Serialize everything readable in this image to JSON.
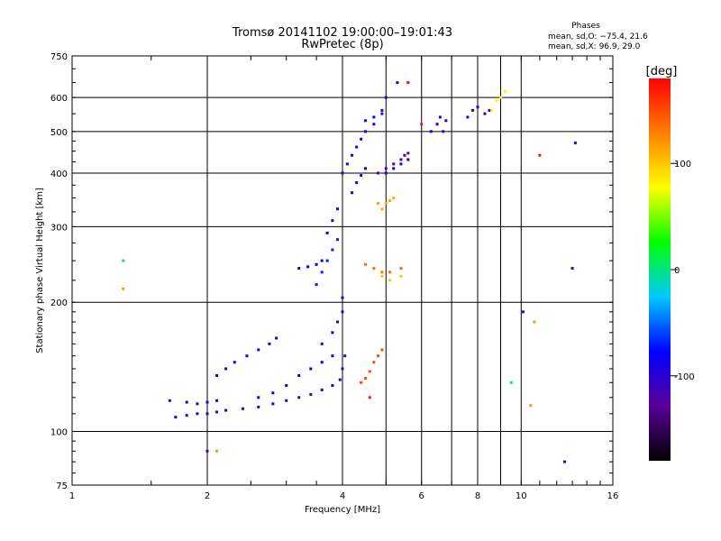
{
  "chart_data": {
    "type": "scatter",
    "title": "Tromsø 20141102 19:00:00–19:01:43",
    "subtitle": "RwPretec (8p)",
    "xlabel": "Frequency [MHz]",
    "ylabel": "Stationary phase Virtual Height [km]",
    "x_scale": "log",
    "y_scale": "log",
    "xlim": [
      1,
      16
    ],
    "ylim": [
      75,
      750
    ],
    "grid": true,
    "x_ticks": [
      1,
      2,
      4,
      6,
      8,
      10,
      16
    ],
    "x_tick_labels": [
      "1",
      "2",
      "4",
      "6",
      "8",
      "10",
      "16"
    ],
    "y_ticks": [
      75,
      100,
      200,
      300,
      400,
      500,
      600,
      750
    ],
    "y_tick_labels": [
      "75",
      "100",
      "200",
      "300",
      "400",
      "500",
      "600",
      "750"
    ],
    "legend": {
      "title": "Phases",
      "lines": [
        "mean, sd,O: −75.4, 21.6",
        "mean, sd,X:  96.9, 29.0"
      ],
      "placement": "top-right"
    },
    "colorbar": {
      "label": "[deg]",
      "range": [
        -180,
        180
      ],
      "ticks": [
        100,
        0,
        -100
      ],
      "tick_labels": [
        "100",
        "0",
        "-100"
      ],
      "stops": [
        "#000000",
        "#5a0096",
        "#0000ff",
        "#00c8ff",
        "#00ff00",
        "#ffff00",
        "#ff8000",
        "#ff0000"
      ]
    },
    "series": [
      {
        "phase": -105,
        "points": [
          [
            1.7,
            108
          ],
          [
            1.8,
            109
          ],
          [
            1.9,
            110
          ],
          [
            2.0,
            110
          ],
          [
            2.1,
            111
          ],
          [
            2.2,
            112
          ],
          [
            2.4,
            113
          ],
          [
            2.6,
            114
          ],
          [
            2.8,
            116
          ],
          [
            3.0,
            118
          ],
          [
            3.2,
            120
          ],
          [
            3.4,
            122
          ],
          [
            3.6,
            125
          ],
          [
            3.8,
            128
          ],
          [
            3.95,
            132
          ],
          [
            4.0,
            140
          ],
          [
            4.05,
            150
          ]
        ]
      },
      {
        "phase": -100,
        "points": [
          [
            1.65,
            118
          ],
          [
            1.8,
            117
          ],
          [
            1.9,
            116
          ],
          [
            2.0,
            117
          ],
          [
            2.1,
            118
          ]
        ]
      },
      {
        "phase": -90,
        "points": [
          [
            2.1,
            135
          ],
          [
            2.2,
            140
          ],
          [
            2.3,
            145
          ],
          [
            2.45,
            150
          ],
          [
            2.6,
            155
          ],
          [
            2.75,
            160
          ],
          [
            2.85,
            165
          ]
        ]
      },
      {
        "phase": -80,
        "points": [
          [
            2.6,
            120
          ],
          [
            2.8,
            123
          ],
          [
            3.0,
            128
          ],
          [
            3.2,
            135
          ],
          [
            3.4,
            140
          ],
          [
            3.6,
            145
          ],
          [
            3.8,
            150
          ]
        ]
      },
      {
        "phase": -95,
        "points": [
          [
            3.6,
            160
          ],
          [
            3.8,
            170
          ],
          [
            3.9,
            180
          ],
          [
            4.0,
            190
          ],
          [
            4.0,
            205
          ]
        ]
      },
      {
        "phase": -70,
        "points": [
          [
            3.5,
            220
          ],
          [
            3.6,
            235
          ],
          [
            3.7,
            250
          ],
          [
            3.8,
            265
          ],
          [
            3.9,
            280
          ]
        ]
      },
      {
        "phase": -85,
        "points": [
          [
            3.2,
            240
          ],
          [
            3.35,
            242
          ],
          [
            3.5,
            245
          ],
          [
            3.6,
            250
          ],
          [
            3.7,
            290
          ],
          [
            3.8,
            310
          ],
          [
            3.9,
            330
          ]
        ]
      },
      {
        "phase": -95,
        "points": [
          [
            4.0,
            400
          ],
          [
            4.1,
            420
          ],
          [
            4.2,
            440
          ],
          [
            4.3,
            460
          ],
          [
            4.4,
            480
          ],
          [
            4.5,
            500
          ]
        ]
      },
      {
        "phase": -80,
        "points": [
          [
            4.2,
            360
          ],
          [
            4.3,
            380
          ],
          [
            4.4,
            395
          ],
          [
            4.5,
            410
          ]
        ]
      },
      {
        "phase": -120,
        "points": [
          [
            4.8,
            400
          ],
          [
            5.0,
            410
          ],
          [
            5.2,
            420
          ],
          [
            5.4,
            430
          ],
          [
            5.5,
            440
          ],
          [
            5.6,
            445
          ]
        ]
      },
      {
        "phase": -100,
        "points": [
          [
            4.7,
            520
          ],
          [
            4.9,
            560
          ],
          [
            5.0,
            600
          ],
          [
            5.3,
            650
          ],
          [
            5.6,
            650
          ]
        ]
      },
      {
        "phase": -75,
        "points": [
          [
            4.5,
            530
          ],
          [
            4.7,
            540
          ],
          [
            4.9,
            550
          ]
        ]
      },
      {
        "phase": 110,
        "points": [
          [
            4.8,
            340
          ],
          [
            4.9,
            330
          ],
          [
            5.0,
            340
          ],
          [
            5.1,
            345
          ],
          [
            5.2,
            350
          ]
        ]
      },
      {
        "phase": 135,
        "points": [
          [
            4.5,
            245
          ],
          [
            4.7,
            240
          ],
          [
            4.9,
            235
          ],
          [
            5.1,
            235
          ],
          [
            5.4,
            240
          ]
        ]
      },
      {
        "phase": 100,
        "points": [
          [
            4.9,
            230
          ],
          [
            5.1,
            225
          ],
          [
            5.4,
            230
          ]
        ]
      },
      {
        "phase": -90,
        "points": [
          [
            5.0,
            400
          ],
          [
            5.2,
            410
          ],
          [
            5.4,
            420
          ],
          [
            5.6,
            430
          ]
        ]
      },
      {
        "phase": 150,
        "points": [
          [
            4.4,
            130
          ],
          [
            4.5,
            133
          ],
          [
            4.6,
            138
          ],
          [
            4.7,
            145
          ],
          [
            4.8,
            150
          ],
          [
            4.9,
            155
          ]
        ]
      },
      {
        "phase": -90,
        "points": [
          [
            6.3,
            500
          ],
          [
            6.5,
            520
          ],
          [
            6.6,
            540
          ],
          [
            6.7,
            500
          ],
          [
            6.8,
            530
          ]
        ]
      },
      {
        "phase": -110,
        "points": [
          [
            7.6,
            540
          ],
          [
            7.8,
            560
          ],
          [
            8.0,
            570
          ],
          [
            8.3,
            550
          ],
          [
            8.5,
            560
          ]
        ]
      },
      {
        "phase": 80,
        "points": [
          [
            8.6,
            560
          ],
          [
            8.8,
            590
          ],
          [
            9.0,
            600
          ],
          [
            9.2,
            620
          ]
        ]
      },
      {
        "phase": 0,
        "points": [
          [
            1.3,
            250
          ],
          [
            9.5,
            130
          ]
        ]
      },
      {
        "phase": 120,
        "points": [
          [
            1.3,
            215
          ],
          [
            2.1,
            90
          ],
          [
            10.5,
            115
          ],
          [
            10.7,
            180
          ]
        ]
      },
      {
        "phase": -100,
        "points": [
          [
            2.0,
            90
          ],
          [
            12.5,
            85
          ],
          [
            13.0,
            240
          ],
          [
            13.2,
            470
          ],
          [
            10.1,
            190
          ]
        ]
      },
      {
        "phase": 170,
        "points": [
          [
            5.6,
            650
          ],
          [
            6.0,
            520
          ],
          [
            4.6,
            120
          ],
          [
            11.0,
            440
          ]
        ]
      }
    ]
  }
}
